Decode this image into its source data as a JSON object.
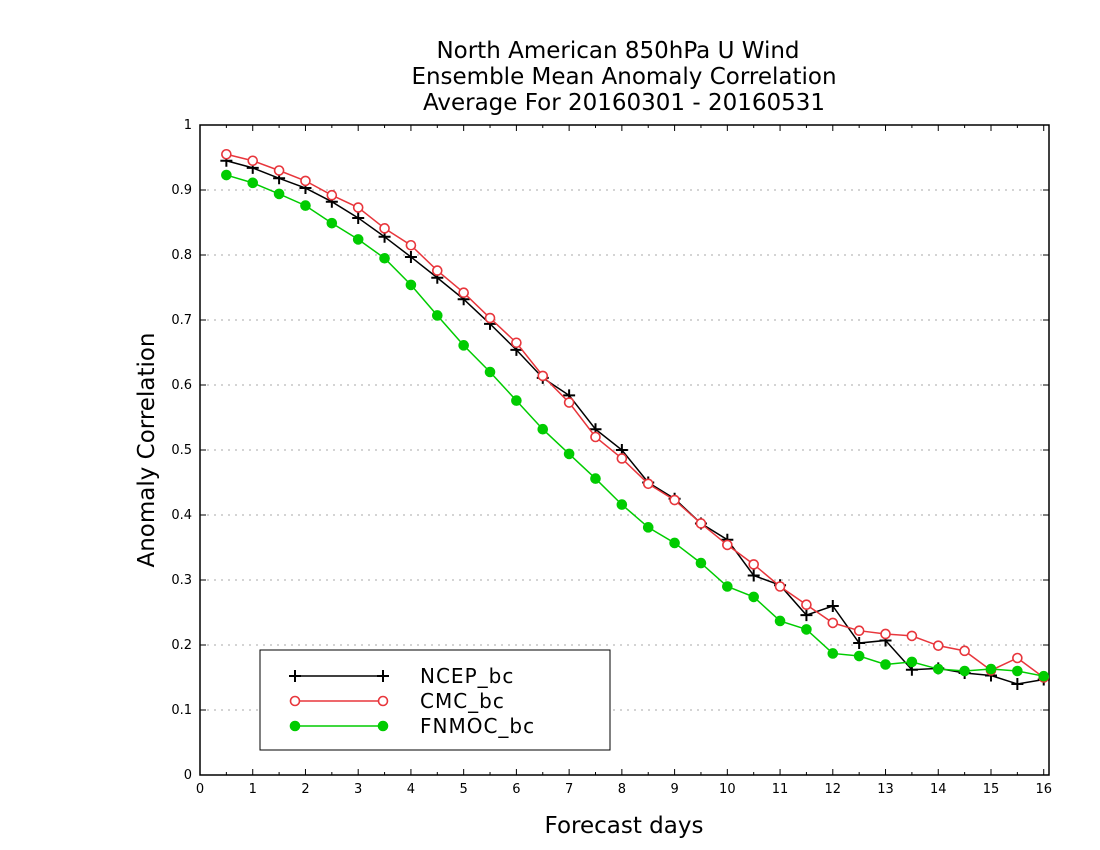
{
  "chart_data": {
    "type": "line",
    "title_lines": [
      "North American 850hPa U Wind",
      "Ensemble Mean Anomaly Correlation",
      "Average For 20160301 - 20160531"
    ],
    "xlabel": "Forecast days",
    "ylabel": "Anomaly Correlation",
    "xlim": [
      0,
      16.1
    ],
    "ylim": [
      0,
      1
    ],
    "xticks": [
      "0",
      "1",
      "2",
      "3",
      "4",
      "5",
      "6",
      "7",
      "8",
      "9",
      "10",
      "11",
      "12",
      "13",
      "14",
      "15",
      "16"
    ],
    "yticks": [
      "0",
      "0.1",
      "0.2",
      "0.3",
      "0.4",
      "0.5",
      "0.6",
      "0.7",
      "0.8",
      "0.9",
      "1"
    ],
    "grid": "horizontal dotted",
    "legend_position": "bottom-left",
    "x": [
      0.5,
      1,
      1.5,
      2,
      2.5,
      3,
      3.5,
      4,
      4.5,
      5,
      5.5,
      6,
      6.5,
      7,
      7.5,
      8,
      8.5,
      9,
      9.5,
      10,
      10.5,
      11,
      11.5,
      12,
      12.5,
      13,
      13.5,
      14,
      14.5,
      15,
      15.5,
      16
    ],
    "series": [
      {
        "name": "NCEP_bc",
        "color": "#000000",
        "marker": "plus",
        "values": [
          0.945,
          0.934,
          0.918,
          0.903,
          0.882,
          0.857,
          0.828,
          0.797,
          0.765,
          0.732,
          0.694,
          0.654,
          0.611,
          0.584,
          0.532,
          0.5,
          0.45,
          0.425,
          0.387,
          0.362,
          0.307,
          0.292,
          0.246,
          0.26,
          0.203,
          0.207,
          0.162,
          0.164,
          0.157,
          0.153,
          0.14,
          0.147
        ]
      },
      {
        "name": "CMC_bc",
        "color": "#e8363c",
        "marker": "open-circle",
        "values": [
          0.955,
          0.945,
          0.93,
          0.914,
          0.892,
          0.873,
          0.841,
          0.815,
          0.776,
          0.742,
          0.703,
          0.665,
          0.614,
          0.573,
          0.52,
          0.487,
          0.448,
          0.423,
          0.387,
          0.354,
          0.324,
          0.29,
          0.262,
          0.234,
          0.222,
          0.217,
          0.214,
          0.199,
          0.191,
          0.161,
          0.18,
          0.15
        ]
      },
      {
        "name": "FNMOC_bc",
        "color": "#00cc00",
        "marker": "filled-circle",
        "values": [
          0.923,
          0.911,
          0.894,
          0.876,
          0.849,
          0.824,
          0.795,
          0.754,
          0.707,
          0.661,
          0.62,
          0.576,
          0.532,
          0.494,
          0.456,
          0.416,
          0.381,
          0.357,
          0.326,
          0.29,
          0.274,
          0.237,
          0.224,
          0.187,
          0.183,
          0.17,
          0.174,
          0.163,
          0.16,
          0.163,
          0.16,
          0.152
        ]
      }
    ]
  }
}
